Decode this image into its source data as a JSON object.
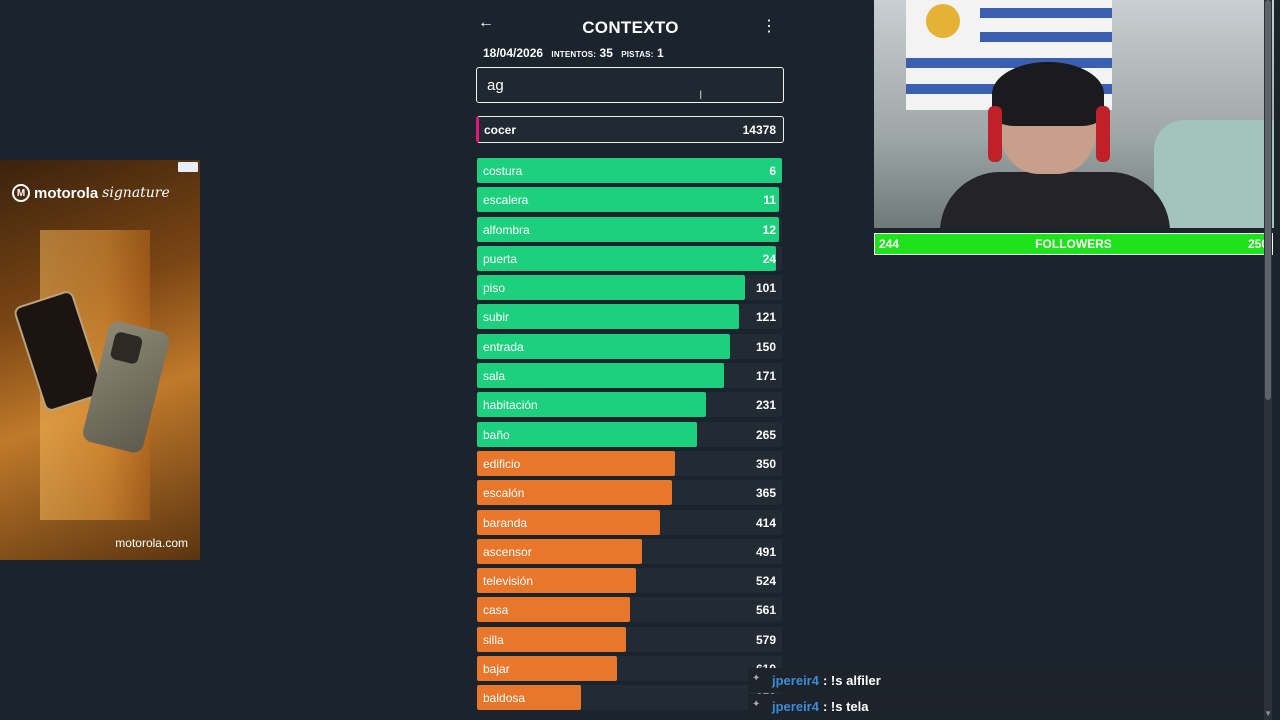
{
  "ad": {
    "brand": "motorola",
    "tagline": "signature",
    "url": "motorola.com"
  },
  "game": {
    "title": "CONTEXTO",
    "date": "18/04/2026",
    "attempts_label": "INTENTOS:",
    "attempts": "35",
    "hints_label": "PISTAS:",
    "hints": "1",
    "input_value": "ag",
    "last_guess": {
      "word": "cocer",
      "rank": "14378"
    },
    "colors": {
      "green": "#1dd07e",
      "orange": "#e8762b",
      "pink": "#e6157a"
    },
    "guesses": [
      {
        "word": "costura",
        "rank": "6",
        "fill": 1.0,
        "color": "green"
      },
      {
        "word": "escalera",
        "rank": "11",
        "fill": 0.99,
        "color": "green"
      },
      {
        "word": "alfombra",
        "rank": "12",
        "fill": 0.99,
        "color": "green"
      },
      {
        "word": "puerta",
        "rank": "24",
        "fill": 0.98,
        "color": "green"
      },
      {
        "word": "piso",
        "rank": "101",
        "fill": 0.88,
        "color": "green"
      },
      {
        "word": "subir",
        "rank": "121",
        "fill": 0.86,
        "color": "green"
      },
      {
        "word": "entrada",
        "rank": "150",
        "fill": 0.83,
        "color": "green"
      },
      {
        "word": "sala",
        "rank": "171",
        "fill": 0.81,
        "color": "green"
      },
      {
        "word": "habitación",
        "rank": "231",
        "fill": 0.75,
        "color": "green"
      },
      {
        "word": "baño",
        "rank": "265",
        "fill": 0.72,
        "color": "green"
      },
      {
        "word": "edificio",
        "rank": "350",
        "fill": 0.65,
        "color": "orange"
      },
      {
        "word": "escalón",
        "rank": "365",
        "fill": 0.64,
        "color": "orange"
      },
      {
        "word": "baranda",
        "rank": "414",
        "fill": 0.6,
        "color": "orange"
      },
      {
        "word": "ascensor",
        "rank": "491",
        "fill": 0.54,
        "color": "orange"
      },
      {
        "word": "televisión",
        "rank": "524",
        "fill": 0.52,
        "color": "orange"
      },
      {
        "word": "casa",
        "rank": "561",
        "fill": 0.5,
        "color": "orange"
      },
      {
        "word": "silla",
        "rank": "579",
        "fill": 0.49,
        "color": "orange"
      },
      {
        "word": "bajar",
        "rank": "619",
        "fill": 0.46,
        "color": "orange"
      },
      {
        "word": "baldosa",
        "rank": "853",
        "fill": 0.34,
        "color": "orange"
      }
    ]
  },
  "followers": {
    "label": "FOLLOWERS",
    "current": "244",
    "goal": "250",
    "progress": 0.976
  },
  "chat": [
    {
      "user": "jpereir4",
      "message": ": !s alfiler"
    },
    {
      "user": "jpereir4",
      "message": ": !s tela"
    }
  ]
}
